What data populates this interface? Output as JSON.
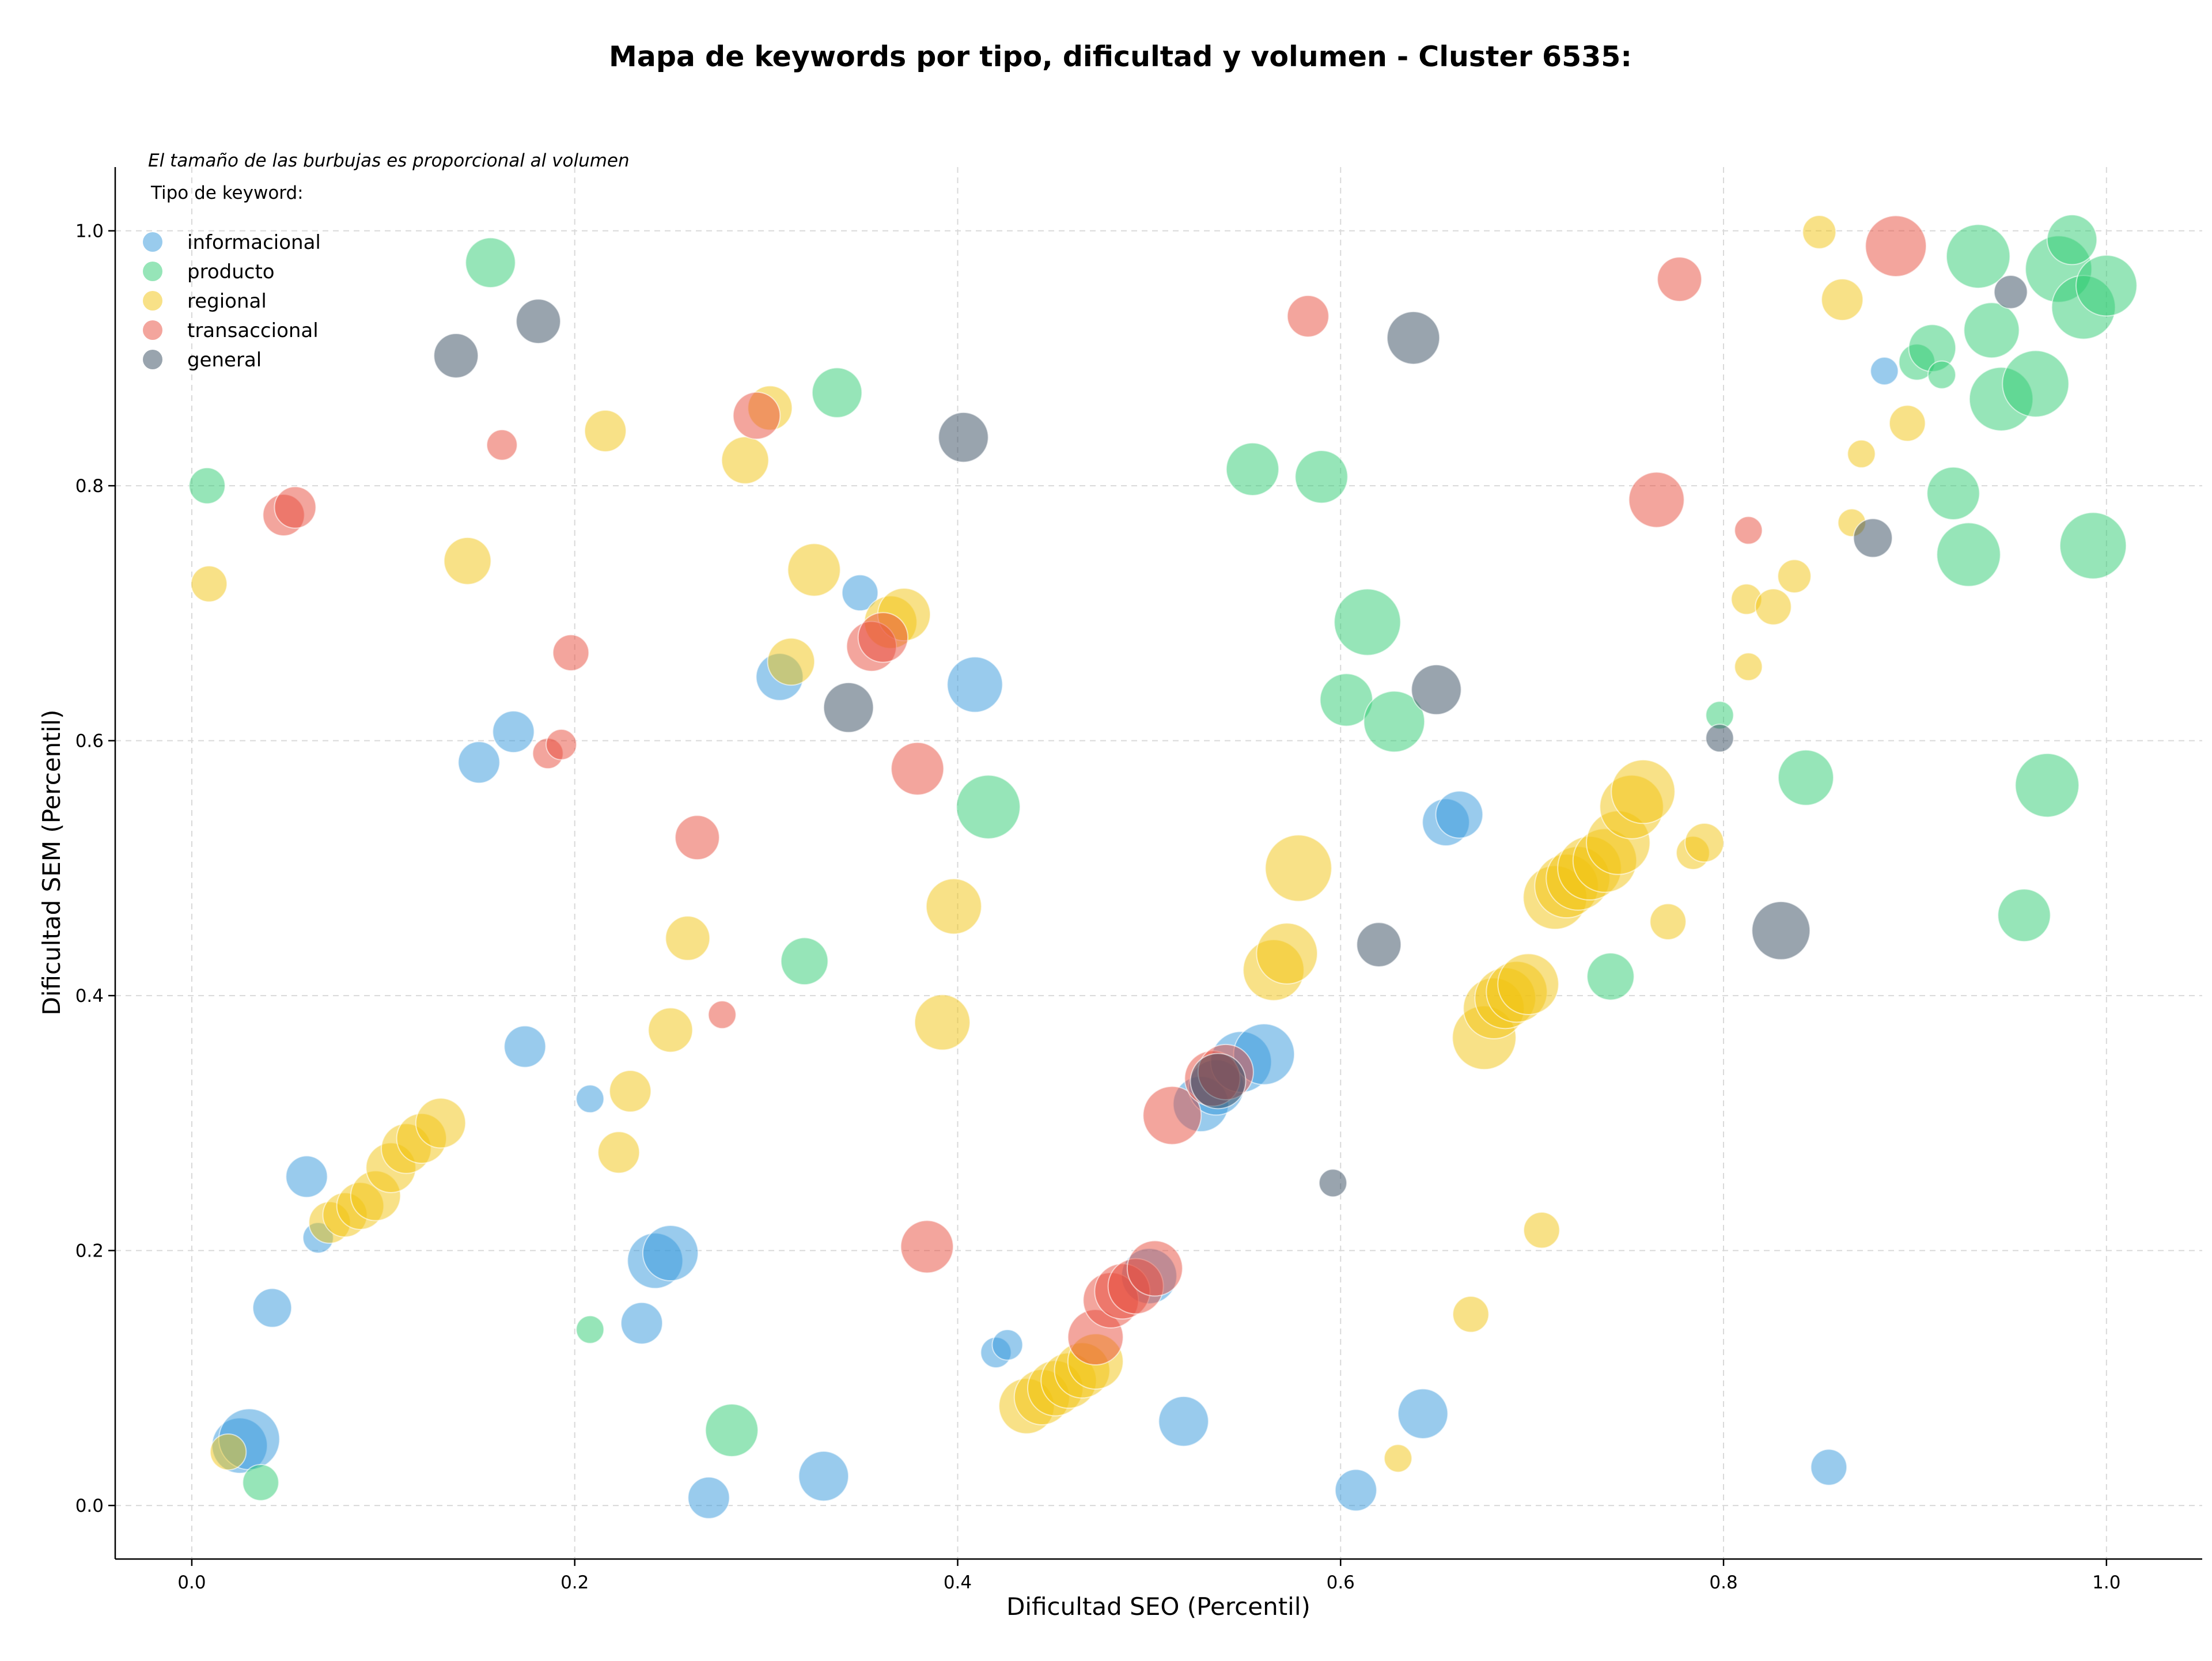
{
  "chart_data": {
    "type": "scatter",
    "title": "Mapa de keywords por tipo, dificultad y volumen - Cluster 6535:",
    "xlabel": "Dificultad SEO (Percentil)",
    "ylabel": "Dificultad SEM (Percentil)",
    "xlim": [
      -0.04,
      1.05
    ],
    "ylim": [
      -0.042,
      1.05
    ],
    "xticks": [
      0.0,
      0.2,
      0.4,
      0.6,
      0.8,
      1.0
    ],
    "xtick_labels": [
      "0.0",
      "0.2",
      "0.4",
      "0.6",
      "0.8",
      "1.0"
    ],
    "yticks": [
      0.0,
      0.2,
      0.4,
      0.6,
      0.8,
      1.0
    ],
    "ytick_labels": [
      "0.0",
      "0.2",
      "0.4",
      "0.6",
      "0.8",
      "1.0"
    ],
    "grid": true,
    "note": "El tamaño de las burbujas es proporcional al volumen",
    "legend_title": "Tipo de keyword:",
    "legend_position": "top-left",
    "series": [
      {
        "name": "informacional",
        "color": "#3498db",
        "points": [
          [
            0.025,
            0.047,
            2
          ],
          [
            0.03,
            0.052,
            2.2
          ],
          [
            0.042,
            0.155,
            1.4
          ],
          [
            0.06,
            0.258,
            1.5
          ],
          [
            0.066,
            0.21,
            1.1
          ],
          [
            0.15,
            0.583,
            1.5
          ],
          [
            0.168,
            0.607,
            1.5
          ],
          [
            0.174,
            0.36,
            1.5
          ],
          [
            0.208,
            0.319,
            1.0
          ],
          [
            0.235,
            0.143,
            1.5
          ],
          [
            0.242,
            0.192,
            2.0
          ],
          [
            0.25,
            0.198,
            2.0
          ],
          [
            0.27,
            0.006,
            1.5
          ],
          [
            0.33,
            0.023,
            1.8
          ],
          [
            0.307,
            0.65,
            1.7
          ],
          [
            0.349,
            0.716,
            1.3
          ],
          [
            0.409,
            0.644,
            2.0
          ],
          [
            0.42,
            0.12,
            1.1
          ],
          [
            0.426,
            0.126,
            1.1
          ],
          [
            0.518,
            0.066,
            1.8
          ],
          [
            0.527,
            0.315,
            2.0
          ],
          [
            0.535,
            0.328,
            2.0
          ],
          [
            0.548,
            0.348,
            2.2
          ],
          [
            0.56,
            0.354,
            2.2
          ],
          [
            0.608,
            0.012,
            1.5
          ],
          [
            0.643,
            0.072,
            1.8
          ],
          [
            0.655,
            0.536,
            1.7
          ],
          [
            0.662,
            0.542,
            1.7
          ],
          [
            0.5,
            0.18,
            2.0
          ],
          [
            0.855,
            0.03,
            1.3
          ],
          [
            0.884,
            0.89,
            1.0
          ]
        ]
      },
      {
        "name": "producto",
        "color": "#2ecc71",
        "points": [
          [
            0.008,
            0.8,
            1.3
          ],
          [
            0.036,
            0.018,
            1.3
          ],
          [
            0.156,
            0.975,
            1.8
          ],
          [
            0.208,
            0.138,
            1.0
          ],
          [
            0.282,
            0.059,
            1.9
          ],
          [
            0.32,
            0.427,
            1.7
          ],
          [
            0.337,
            0.873,
            1.8
          ],
          [
            0.416,
            0.548,
            2.3
          ],
          [
            0.554,
            0.813,
            1.9
          ],
          [
            0.59,
            0.807,
            1.9
          ],
          [
            0.603,
            0.632,
            1.9
          ],
          [
            0.614,
            0.693,
            2.4
          ],
          [
            0.628,
            0.615,
            2.2
          ],
          [
            0.741,
            0.415,
            1.7
          ],
          [
            0.798,
            0.62,
            1.0
          ],
          [
            0.843,
            0.571,
            2.0
          ],
          [
            0.901,
            0.897,
            1.3
          ],
          [
            0.909,
            0.908,
            1.7
          ],
          [
            0.914,
            0.887,
            1.0
          ],
          [
            0.92,
            0.794,
            1.9
          ],
          [
            0.928,
            0.746,
            2.3
          ],
          [
            0.933,
            0.98,
            2.3
          ],
          [
            0.94,
            0.922,
            2.0
          ],
          [
            0.945,
            0.868,
            2.3
          ],
          [
            0.957,
            0.463,
            1.9
          ],
          [
            0.963,
            0.88,
            2.4
          ],
          [
            0.969,
            0.565,
            2.3
          ],
          [
            0.975,
            0.97,
            2.4
          ],
          [
            0.982,
            0.993,
            1.8
          ],
          [
            0.988,
            0.94,
            2.3
          ],
          [
            0.993,
            0.753,
            2.4
          ],
          [
            1.0,
            0.957,
            2.2
          ]
        ]
      },
      {
        "name": "regional",
        "color": "#f1c40f",
        "points": [
          [
            0.009,
            0.723,
            1.3
          ],
          [
            0.019,
            0.042,
            1.3
          ],
          [
            0.072,
            0.222,
            1.5
          ],
          [
            0.08,
            0.228,
            1.6
          ],
          [
            0.088,
            0.235,
            1.7
          ],
          [
            0.096,
            0.243,
            1.8
          ],
          [
            0.104,
            0.265,
            1.8
          ],
          [
            0.112,
            0.28,
            1.8
          ],
          [
            0.12,
            0.288,
            1.8
          ],
          [
            0.13,
            0.3,
            1.8
          ],
          [
            0.144,
            0.741,
            1.7
          ],
          [
            0.216,
            0.843,
            1.5
          ],
          [
            0.223,
            0.277,
            1.5
          ],
          [
            0.229,
            0.325,
            1.5
          ],
          [
            0.25,
            0.373,
            1.6
          ],
          [
            0.259,
            0.445,
            1.6
          ],
          [
            0.289,
            0.82,
            1.7
          ],
          [
            0.302,
            0.861,
            1.6
          ],
          [
            0.313,
            0.662,
            1.7
          ],
          [
            0.325,
            0.734,
            1.9
          ],
          [
            0.365,
            0.693,
            1.9
          ],
          [
            0.372,
            0.699,
            1.9
          ],
          [
            0.392,
            0.379,
            2.0
          ],
          [
            0.398,
            0.47,
            2.0
          ],
          [
            0.436,
            0.078,
            2.0
          ],
          [
            0.444,
            0.085,
            2.0
          ],
          [
            0.451,
            0.092,
            2.0
          ],
          [
            0.458,
            0.098,
            2.0
          ],
          [
            0.465,
            0.106,
            2.0
          ],
          [
            0.472,
            0.113,
            2.0
          ],
          [
            0.565,
            0.42,
            2.2
          ],
          [
            0.572,
            0.433,
            2.2
          ],
          [
            0.578,
            0.5,
            2.4
          ],
          [
            0.63,
            0.037,
            1.0
          ],
          [
            0.668,
            0.15,
            1.3
          ],
          [
            0.675,
            0.367,
            2.3
          ],
          [
            0.68,
            0.39,
            2.2
          ],
          [
            0.686,
            0.398,
            2.2
          ],
          [
            0.692,
            0.403,
            2.2
          ],
          [
            0.698,
            0.409,
            2.2
          ],
          [
            0.705,
            0.216,
            1.3
          ],
          [
            0.712,
            0.477,
            2.3
          ],
          [
            0.718,
            0.486,
            2.3
          ],
          [
            0.724,
            0.492,
            2.3
          ],
          [
            0.73,
            0.5,
            2.3
          ],
          [
            0.738,
            0.506,
            2.3
          ],
          [
            0.745,
            0.52,
            2.3
          ],
          [
            0.752,
            0.548,
            2.3
          ],
          [
            0.758,
            0.56,
            2.3
          ],
          [
            0.771,
            0.458,
            1.3
          ],
          [
            0.784,
            0.512,
            1.2
          ],
          [
            0.79,
            0.52,
            1.4
          ],
          [
            0.812,
            0.711,
            1.1
          ],
          [
            0.813,
            0.658,
            1.0
          ],
          [
            0.826,
            0.705,
            1.3
          ],
          [
            0.837,
            0.729,
            1.2
          ],
          [
            0.85,
            0.999,
            1.2
          ],
          [
            0.862,
            0.946,
            1.5
          ],
          [
            0.867,
            0.771,
            1.0
          ],
          [
            0.872,
            0.825,
            1.0
          ],
          [
            0.896,
            0.849,
            1.3
          ]
        ]
      },
      {
        "name": "transaccional",
        "color": "#e74c3c",
        "points": [
          [
            0.048,
            0.777,
            1.5
          ],
          [
            0.054,
            0.783,
            1.5
          ],
          [
            0.162,
            0.832,
            1.1
          ],
          [
            0.186,
            0.59,
            1.1
          ],
          [
            0.193,
            0.597,
            1.1
          ],
          [
            0.198,
            0.669,
            1.3
          ],
          [
            0.264,
            0.524,
            1.6
          ],
          [
            0.277,
            0.385,
            1.0
          ],
          [
            0.295,
            0.855,
            1.7
          ],
          [
            0.355,
            0.674,
            1.8
          ],
          [
            0.361,
            0.681,
            1.8
          ],
          [
            0.379,
            0.578,
            1.9
          ],
          [
            0.384,
            0.203,
            1.9
          ],
          [
            0.472,
            0.132,
            2.0
          ],
          [
            0.48,
            0.161,
            2.0
          ],
          [
            0.486,
            0.168,
            2.0
          ],
          [
            0.493,
            0.172,
            2.0
          ],
          [
            0.503,
            0.186,
            2.0
          ],
          [
            0.512,
            0.306,
            2.1
          ],
          [
            0.533,
            0.335,
            2.0
          ],
          [
            0.54,
            0.34,
            2.0
          ],
          [
            0.583,
            0.933,
            1.5
          ],
          [
            0.765,
            0.789,
            2.0
          ],
          [
            0.777,
            0.962,
            1.6
          ],
          [
            0.813,
            0.765,
            1.0
          ],
          [
            0.89,
            0.988,
            2.2
          ]
        ]
      },
      {
        "name": "general",
        "color": "#34495e",
        "points": [
          [
            0.138,
            0.902,
            1.6
          ],
          [
            0.181,
            0.929,
            1.6
          ],
          [
            0.343,
            0.626,
            1.8
          ],
          [
            0.403,
            0.838,
            1.8
          ],
          [
            0.536,
            0.333,
            2.0
          ],
          [
            0.596,
            0.253,
            1.0
          ],
          [
            0.62,
            0.44,
            1.6
          ],
          [
            0.638,
            0.916,
            1.9
          ],
          [
            0.65,
            0.64,
            1.8
          ],
          [
            0.798,
            0.602,
            1.0
          ],
          [
            0.83,
            0.451,
            2.1
          ],
          [
            0.878,
            0.759,
            1.4
          ],
          [
            0.95,
            0.952,
            1.2
          ]
        ]
      }
    ]
  }
}
